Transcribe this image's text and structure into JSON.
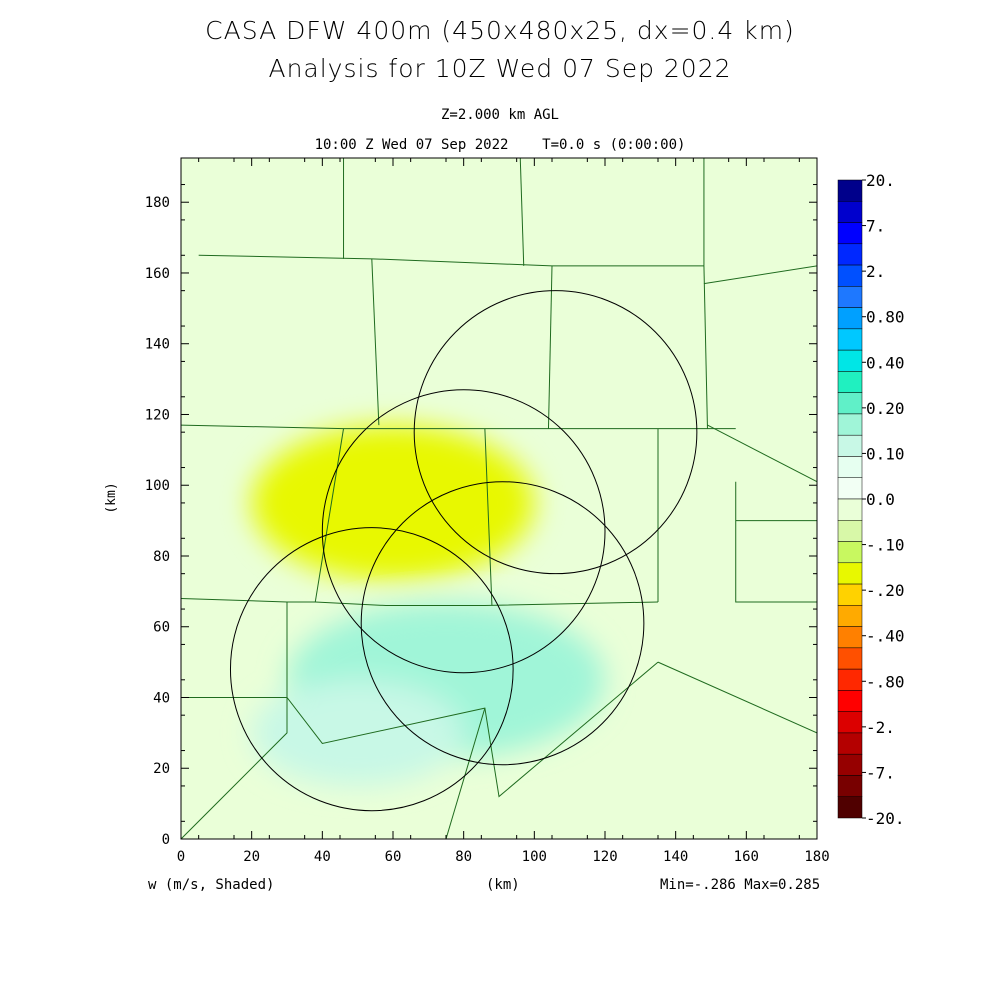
{
  "title_line1": "CASA DFW 400m (450x480x25, dx=0.4 km)",
  "title_line2": "Analysis for 10Z Wed 07 Sep 2022",
  "level_label": "Z=2.000 km AGL",
  "time_label": "10:00 Z Wed 07 Sep 2022    T=0.0 s (0:00:00)",
  "field_label": "w (m/s, Shaded)",
  "x_axis_label": "(km)",
  "y_axis_label": "(km)",
  "minmax_label": "Min=-.286 Max=0.285",
  "axes": {
    "x_ticks": [
      "0",
      "20",
      "40",
      "60",
      "80",
      "100",
      "120",
      "140",
      "160",
      "180"
    ],
    "y_ticks": [
      "0",
      "20",
      "40",
      "60",
      "80",
      "100",
      "120",
      "140",
      "160",
      "180"
    ]
  },
  "colorbar": {
    "labels": [
      "20.",
      "7.",
      "2.",
      "0.80",
      "0.40",
      "0.20",
      "0.10",
      "0.0",
      "-.10",
      "-.20",
      "-.40",
      "-.80",
      "-2.",
      "-7.",
      "-20."
    ],
    "colors_top_to_bottom": [
      "#00008b",
      "#0000cd",
      "#0000ff",
      "#0028ff",
      "#0050ff",
      "#1e78ff",
      "#00a0ff",
      "#00c8ff",
      "#00e6e6",
      "#20f0c0",
      "#60f0c8",
      "#a0f5d8",
      "#c8f8e6",
      "#e6fff0",
      "#f2fff4",
      "#eaffd8",
      "#d8f8a8",
      "#c8f860",
      "#e8f800",
      "#ffd200",
      "#ffaa00",
      "#ff8000",
      "#ff5000",
      "#ff2800",
      "#ff0000",
      "#dc0000",
      "#b40000",
      "#960000",
      "#780000",
      "#500000"
    ]
  },
  "radar_circles_km": [
    {
      "cx": 54,
      "cy": 48,
      "r": 40
    },
    {
      "cx": 80,
      "cy": 87,
      "r": 40
    },
    {
      "cx": 106,
      "cy": 115,
      "r": 40
    },
    {
      "cx": 91,
      "cy": 61,
      "r": 40
    }
  ],
  "field_blobs_km": [
    {
      "cx": 70,
      "cy": 105,
      "rx": 20,
      "ry": 9,
      "color": "#ffd200"
    },
    {
      "cx": 60,
      "cy": 95,
      "rx": 40,
      "ry": 22,
      "color": "#e8f800"
    },
    {
      "cx": 85,
      "cy": 45,
      "rx": 14,
      "ry": 8,
      "color": "#60f0c8"
    },
    {
      "cx": 75,
      "cy": 45,
      "rx": 45,
      "ry": 22,
      "color": "#a0f5d8"
    },
    {
      "cx": 50,
      "cy": 30,
      "rx": 30,
      "ry": 15,
      "color": "#c8f8e6"
    }
  ],
  "county_lines_km": [
    [
      [
        0,
        117
      ],
      [
        46,
        116
      ],
      [
        86,
        116
      ],
      [
        119,
        116
      ],
      [
        135,
        116
      ],
      [
        157,
        116
      ]
    ],
    [
      [
        0,
        68
      ],
      [
        30,
        67
      ],
      [
        38,
        67
      ],
      [
        58,
        66
      ],
      [
        86,
        66
      ],
      [
        135,
        67
      ]
    ],
    [
      [
        46,
        116
      ],
      [
        38,
        67
      ]
    ],
    [
      [
        86,
        116
      ],
      [
        88,
        66
      ]
    ],
    [
      [
        135,
        116
      ],
      [
        135,
        67
      ]
    ],
    [
      [
        5,
        165
      ],
      [
        54,
        164
      ],
      [
        105,
        162
      ],
      [
        148,
        162
      ]
    ],
    [
      [
        54,
        164
      ],
      [
        56,
        117
      ]
    ],
    [
      [
        105,
        162
      ],
      [
        104,
        116
      ]
    ],
    [
      [
        148,
        162
      ],
      [
        149,
        116
      ]
    ],
    [
      [
        46,
        193
      ],
      [
        46,
        164
      ]
    ],
    [
      [
        96,
        193
      ],
      [
        97,
        162
      ]
    ],
    [
      [
        148,
        193
      ],
      [
        148,
        162
      ]
    ],
    [
      [
        148,
        157
      ],
      [
        180,
        162
      ]
    ],
    [
      [
        149,
        117
      ],
      [
        180,
        101
      ]
    ],
    [
      [
        157,
        101
      ],
      [
        157,
        67
      ],
      [
        180,
        67
      ]
    ],
    [
      [
        0,
        40
      ],
      [
        30,
        40
      ],
      [
        40,
        27
      ],
      [
        86,
        37
      ],
      [
        90,
        12
      ],
      [
        135,
        50
      ]
    ],
    [
      [
        30,
        67
      ],
      [
        30,
        30
      ],
      [
        10,
        10
      ],
      [
        0,
        0
      ]
    ],
    [
      [
        86,
        37
      ],
      [
        75,
        0
      ]
    ],
    [
      [
        135,
        50
      ],
      [
        180,
        30
      ]
    ],
    [
      [
        157,
        90
      ],
      [
        180,
        90
      ]
    ]
  ]
}
